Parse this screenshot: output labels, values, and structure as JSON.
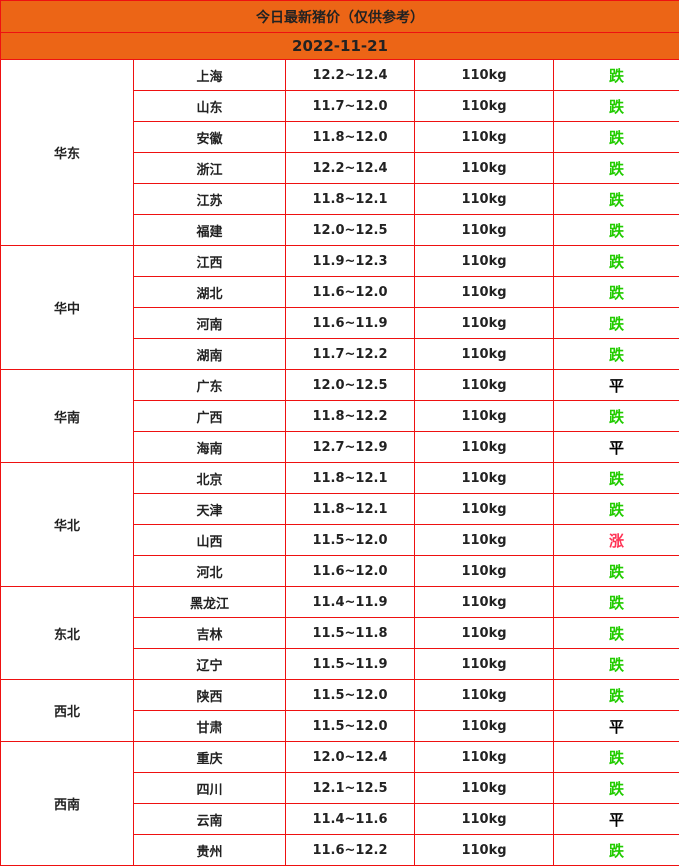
{
  "title": "今日最新猪价（仅供参考）",
  "date": "2022-11-21",
  "colors": {
    "header_bg": "#ec6516",
    "border": "#ee1111",
    "down": "#22cc00",
    "up": "#ff3355",
    "flat": "#000000"
  },
  "regions": [
    {
      "name": "华东",
      "rows": [
        {
          "province": "上海",
          "price": "12.2~12.4",
          "weight": "110kg",
          "trend": "跌"
        },
        {
          "province": "山东",
          "price": "11.7~12.0",
          "weight": "110kg",
          "trend": "跌"
        },
        {
          "province": "安徽",
          "price": "11.8~12.0",
          "weight": "110kg",
          "trend": "跌"
        },
        {
          "province": "浙江",
          "price": "12.2~12.4",
          "weight": "110kg",
          "trend": "跌"
        },
        {
          "province": "江苏",
          "price": "11.8~12.1",
          "weight": "110kg",
          "trend": "跌"
        },
        {
          "province": "福建",
          "price": "12.0~12.5",
          "weight": "110kg",
          "trend": "跌"
        }
      ]
    },
    {
      "name": "华中",
      "rows": [
        {
          "province": "江西",
          "price": "11.9~12.3",
          "weight": "110kg",
          "trend": "跌"
        },
        {
          "province": "湖北",
          "price": "11.6~12.0",
          "weight": "110kg",
          "trend": "跌"
        },
        {
          "province": "河南",
          "price": "11.6~11.9",
          "weight": "110kg",
          "trend": "跌"
        },
        {
          "province": "湖南",
          "price": "11.7~12.2",
          "weight": "110kg",
          "trend": "跌"
        }
      ]
    },
    {
      "name": "华南",
      "rows": [
        {
          "province": "广东",
          "price": "12.0~12.5",
          "weight": "110kg",
          "trend": "平"
        },
        {
          "province": "广西",
          "price": "11.8~12.2",
          "weight": "110kg",
          "trend": "跌"
        },
        {
          "province": "海南",
          "price": "12.7~12.9",
          "weight": "110kg",
          "trend": "平"
        }
      ]
    },
    {
      "name": "华北",
      "rows": [
        {
          "province": "北京",
          "price": "11.8~12.1",
          "weight": "110kg",
          "trend": "跌"
        },
        {
          "province": "天津",
          "price": "11.8~12.1",
          "weight": "110kg",
          "trend": "跌"
        },
        {
          "province": "山西",
          "price": "11.5~12.0",
          "weight": "110kg",
          "trend": "涨"
        },
        {
          "province": "河北",
          "price": "11.6~12.0",
          "weight": "110kg",
          "trend": "跌"
        }
      ]
    },
    {
      "name": "东北",
      "rows": [
        {
          "province": "黑龙江",
          "price": "11.4~11.9",
          "weight": "110kg",
          "trend": "跌"
        },
        {
          "province": "吉林",
          "price": "11.5~11.8",
          "weight": "110kg",
          "trend": "跌"
        },
        {
          "province": "辽宁",
          "price": "11.5~11.9",
          "weight": "110kg",
          "trend": "跌"
        }
      ]
    },
    {
      "name": "西北",
      "rows": [
        {
          "province": "陕西",
          "price": "11.5~12.0",
          "weight": "110kg",
          "trend": "跌"
        },
        {
          "province": "甘肃",
          "price": "11.5~12.0",
          "weight": "110kg",
          "trend": "平"
        }
      ]
    },
    {
      "name": "西南",
      "rows": [
        {
          "province": "重庆",
          "price": "12.0~12.4",
          "weight": "110kg",
          "trend": "跌"
        },
        {
          "province": "四川",
          "price": "12.1~12.5",
          "weight": "110kg",
          "trend": "跌"
        },
        {
          "province": "云南",
          "price": "11.4~11.6",
          "weight": "110kg",
          "trend": "平"
        },
        {
          "province": "贵州",
          "price": "11.6~12.2",
          "weight": "110kg",
          "trend": "跌"
        }
      ]
    }
  ]
}
